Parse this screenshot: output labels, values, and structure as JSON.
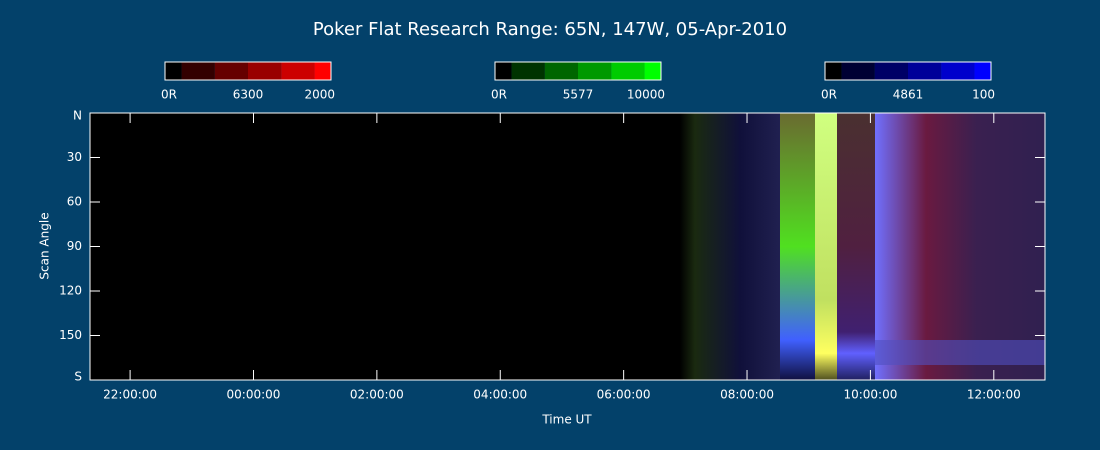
{
  "chart_data": {
    "type": "keogram",
    "title": "Poker Flat Research Range: 65N, 147W, 05-Apr-2010",
    "colorbars": [
      {
        "min_label": "0R",
        "wavelength": "6300",
        "max": 2000,
        "colors": [
          "#000000",
          "#330000",
          "#660000",
          "#990000",
          "#cc0000",
          "#ff0000"
        ]
      },
      {
        "min_label": "0R",
        "wavelength": "5577",
        "max": 10000,
        "colors": [
          "#000000",
          "#003300",
          "#006600",
          "#009900",
          "#00cc00",
          "#00ff00"
        ]
      },
      {
        "min_label": "0R",
        "wavelength": "4861",
        "max": 100,
        "colors": [
          "#000000",
          "#000033",
          "#000066",
          "#000099",
          "#0000cc",
          "#0000ff"
        ]
      }
    ],
    "ylabel": "Scan Angle",
    "xlabel": "Time UT",
    "ylim": [
      0,
      180
    ],
    "y_inverted": true,
    "yticks": [
      {
        "value": 0,
        "label": "N"
      },
      30,
      60,
      90,
      120,
      150,
      {
        "value": 180,
        "label": "S"
      }
    ],
    "xlim": [
      21.35,
      36.83
    ],
    "xticks": [
      {
        "value": 22,
        "label": "22:00:00"
      },
      {
        "value": 24,
        "label": "00:00:00"
      },
      {
        "value": 26,
        "label": "02:00:00"
      },
      {
        "value": 28,
        "label": "04:00:00"
      },
      {
        "value": 30,
        "label": "06:00:00"
      },
      {
        "value": 32,
        "label": "08:00:00"
      },
      {
        "value": 34,
        "label": "10:00:00"
      },
      {
        "value": 36,
        "label": "12:00:00"
      }
    ]
  }
}
